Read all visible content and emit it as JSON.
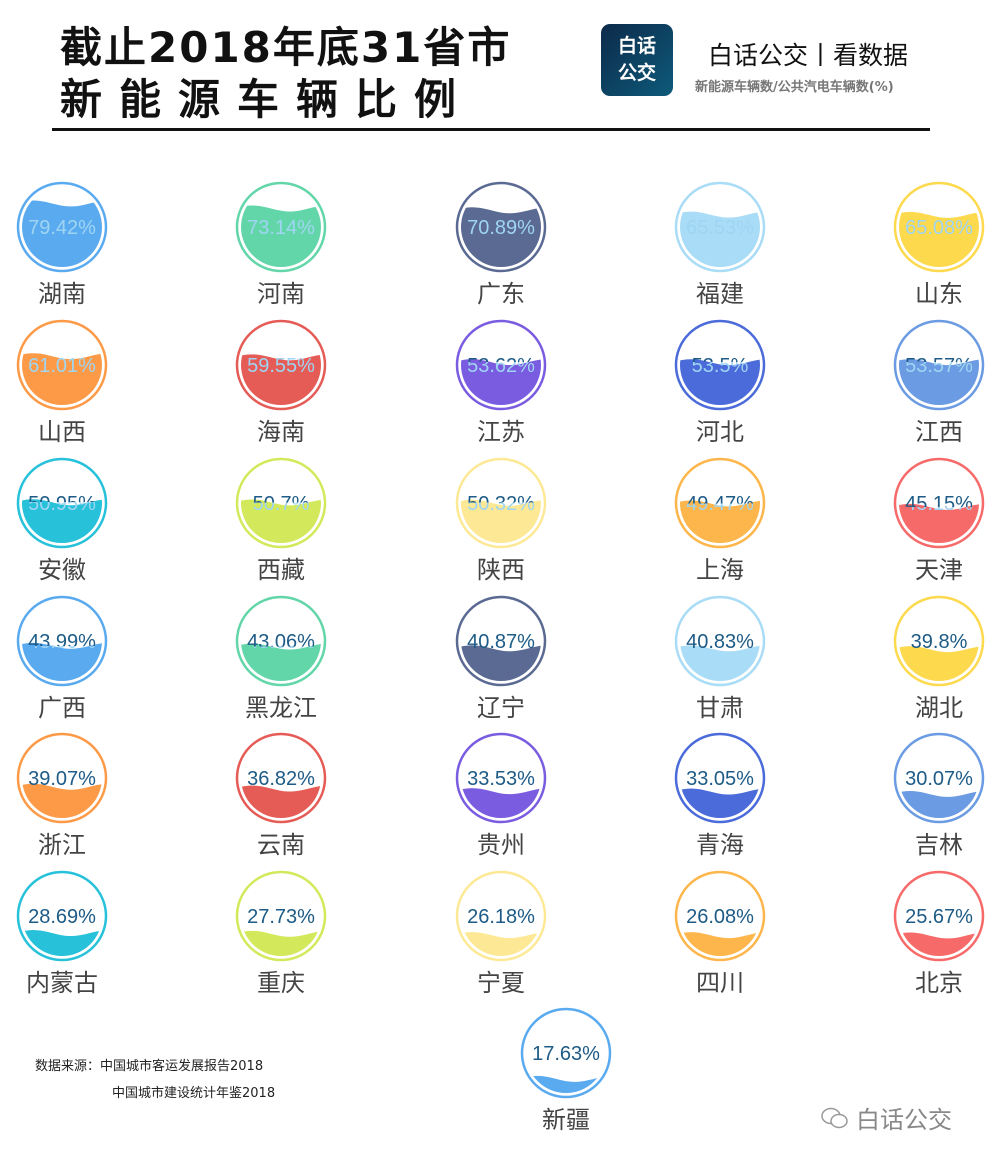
{
  "header": {
    "title_line1": "截止2018年底31省市",
    "title_line2": "新能源车辆比例",
    "logo_text": [
      "白话",
      "公交"
    ],
    "brand": "白话公交丨看数据",
    "subtitle": "新能源车辆数/公共汽电车辆数(%)"
  },
  "chart_data": {
    "type": "liquid-fill-gauge",
    "unit": "%",
    "palette": [
      "#5aaaf0",
      "#63d6a9",
      "#5a6a92",
      "#a9dcf6",
      "#fdd94e",
      "#fd9a48",
      "#e55b56",
      "#7a5ce0",
      "#4a6bd9",
      "#6b9be2",
      "#27c1da",
      "#d3e95b",
      "#fde995",
      "#fdb64c",
      "#f66a6a"
    ],
    "text_dark": "#1e5b86",
    "text_light": "#9fd5f2",
    "items": [
      {
        "name": "湖南",
        "value": 79.42
      },
      {
        "name": "河南",
        "value": 73.14
      },
      {
        "name": "广东",
        "value": 70.89
      },
      {
        "name": "福建",
        "value": 65.53
      },
      {
        "name": "山东",
        "value": 65.08
      },
      {
        "name": "山西",
        "value": 61.01
      },
      {
        "name": "海南",
        "value": 59.55
      },
      {
        "name": "江苏",
        "value": 53.62
      },
      {
        "name": "河北",
        "value": 53.5
      },
      {
        "name": "江西",
        "value": 53.57
      },
      {
        "name": "安徽",
        "value": 50.95
      },
      {
        "name": "西藏",
        "value": 50.7
      },
      {
        "name": "陕西",
        "value": 50.32
      },
      {
        "name": "上海",
        "value": 49.47
      },
      {
        "name": "天津",
        "value": 45.15
      },
      {
        "name": "广西",
        "value": 43.99
      },
      {
        "name": "黑龙江",
        "value": 43.06
      },
      {
        "name": "辽宁",
        "value": 40.87
      },
      {
        "name": "甘肃",
        "value": 40.83
      },
      {
        "name": "湖北",
        "value": 39.8
      },
      {
        "name": "浙江",
        "value": 39.07
      },
      {
        "name": "云南",
        "value": 36.82
      },
      {
        "name": "贵州",
        "value": 33.53
      },
      {
        "name": "青海",
        "value": 33.05
      },
      {
        "name": "吉林",
        "value": 30.07
      },
      {
        "name": "内蒙古",
        "value": 28.69
      },
      {
        "name": "重庆",
        "value": 27.73
      },
      {
        "name": "宁夏",
        "value": 26.18
      },
      {
        "name": "四川",
        "value": 26.08
      },
      {
        "name": "北京",
        "value": 25.67
      },
      {
        "name": "新疆",
        "value": 17.63
      }
    ]
  },
  "footer": {
    "source_label": "数据来源：中国城市客运发展报告2018",
    "source_line2": "中国城市建设统计年鉴2018",
    "watermark": "白话公交"
  }
}
